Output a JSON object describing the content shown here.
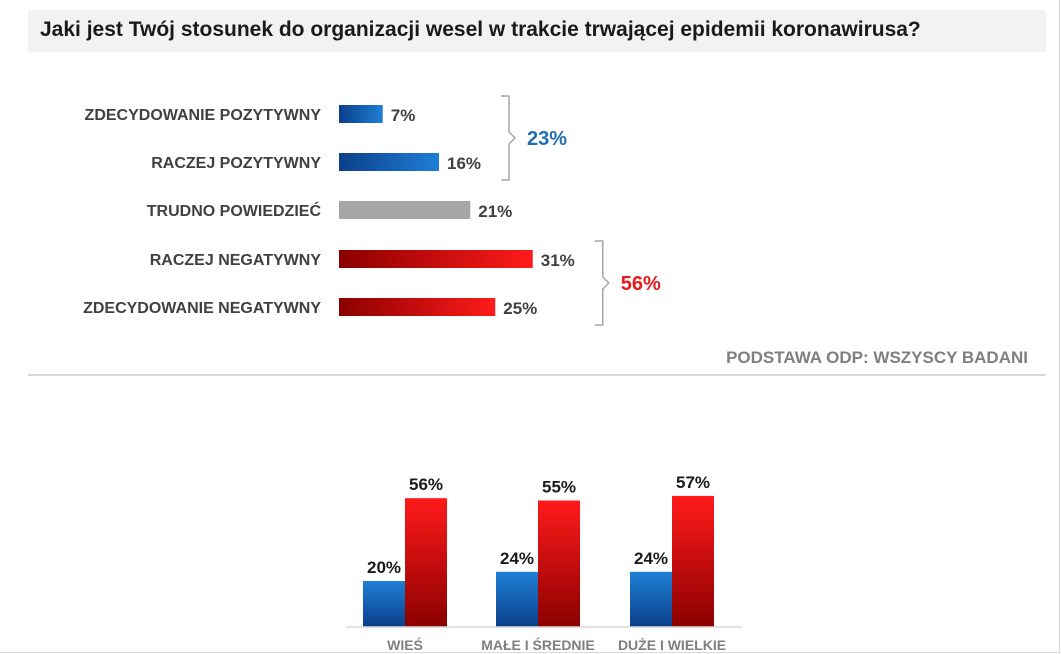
{
  "title": "Jaki jest Twój stosunek do organizacji wesel w trakcie trwającej epidemii koronawirusa?",
  "source_note": "PODSTAWA ODP: WSZYSCY BADANI",
  "colors": {
    "blue_dark": "#0b3f8a",
    "blue_light": "#1f7fd6",
    "red_dark": "#8b0000",
    "red_light": "#ff1a1a",
    "gray": "#a6a6a6",
    "blue_text": "#1f6fb4",
    "red_text": "#e31a1a"
  },
  "chart_data": [
    {
      "type": "bar",
      "orientation": "horizontal",
      "categories": [
        "ZDECYDOWANIE POZYTYWNY",
        "RACZEJ POZYTYWNY",
        "TRUDNO POWIEDZIEĆ",
        "RACZEJ NEGATYWNY",
        "ZDECYDOWANIE NEGATYWNY"
      ],
      "values": [
        7,
        16,
        21,
        31,
        25
      ],
      "labels": [
        "7%",
        "16%",
        "21%",
        "31%",
        "25%"
      ],
      "groups": [
        "positive",
        "positive",
        "neutral",
        "negative",
        "negative"
      ],
      "annotations": [
        {
          "group": "positive",
          "text": "23%"
        },
        {
          "group": "negative",
          "text": "56%"
        }
      ],
      "xlim": [
        0,
        35
      ]
    },
    {
      "type": "bar",
      "orientation": "vertical",
      "categories": [
        "WIEŚ",
        "MAŁE I ŚREDNIE",
        "DUŻE I WIELKIE"
      ],
      "series": [
        {
          "name": "positive",
          "values": [
            20,
            24,
            24
          ],
          "labels": [
            "20%",
            "24%",
            "24%"
          ]
        },
        {
          "name": "negative",
          "values": [
            56,
            55,
            57
          ],
          "labels": [
            "56%",
            "55%",
            "57%"
          ]
        }
      ],
      "ylim": [
        0,
        60
      ]
    }
  ]
}
